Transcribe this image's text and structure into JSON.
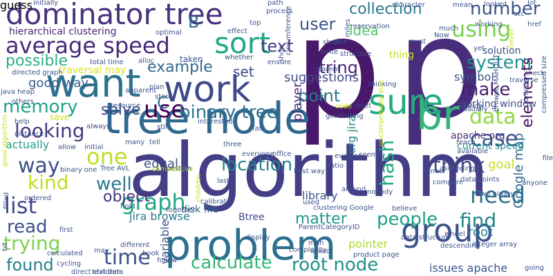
{
  "words": [
    {
      "text": "p",
      "color": "#48186a"
    },
    {
      "text": "p",
      "color": "#472d7b"
    },
    {
      "text": "algorithm",
      "color": "#433e85"
    },
    {
      "text": "tree node",
      "color": "#31688e"
    },
    {
      "text": "problem",
      "color": "#2d708e"
    },
    {
      "text": "br",
      "color": "#35b779"
    },
    {
      "text": "sure",
      "color": "#25ab82"
    },
    {
      "text": "group",
      "color": "#3b528b"
    },
    {
      "text": "want",
      "color": "#2c728e"
    },
    {
      "text": "work",
      "color": "#3e4989"
    },
    {
      "text": "dominator tree",
      "color": "#46327e"
    },
    {
      "text": "average speed",
      "color": "#482979"
    },
    {
      "text": "sort",
      "color": "#22a785"
    },
    {
      "text": "use",
      "color": "#440154"
    },
    {
      "text": "using",
      "color": "#7ad151"
    },
    {
      "text": "list",
      "color": "#3e4a89"
    },
    {
      "text": "graph",
      "color": "#22a884"
    },
    {
      "text": "time",
      "color": "#3b528b"
    },
    {
      "text": "data",
      "color": "#8fd744"
    },
    {
      "text": "one",
      "color": "#bddf26"
    },
    {
      "text": "binary tree",
      "color": "#2d708e"
    },
    {
      "text": "think",
      "color": "#414487"
    },
    {
      "text": "need",
      "color": "#2c728e"
    },
    {
      "text": "people",
      "color": "#1fa088"
    },
    {
      "text": "find",
      "color": "#24868e"
    },
    {
      "text": "kind",
      "color": "#bddf26"
    },
    {
      "text": "memory",
      "color": "#1fa188"
    },
    {
      "text": "make",
      "color": "#481d6f"
    },
    {
      "text": "location",
      "color": "#26828e"
    },
    {
      "text": "looking",
      "color": "#453781"
    },
    {
      "text": "system",
      "color": "#21918c"
    },
    {
      "text": "case",
      "color": "#3b528b"
    },
    {
      "text": "trying",
      "color": "#7ad151"
    },
    {
      "text": "calculate",
      "color": "#35b779"
    },
    {
      "text": "root node",
      "color": "#21918c"
    },
    {
      "text": "text",
      "color": "#443983"
    },
    {
      "text": "number",
      "color": "#3b528b"
    },
    {
      "text": "user",
      "color": "#3b528b"
    },
    {
      "text": "collection",
      "color": "#2a788e"
    },
    {
      "text": "point",
      "color": "#2a788e"
    },
    {
      "text": "string",
      "color": "#482475"
    },
    {
      "text": "possible",
      "color": "#2ab07f"
    },
    {
      "text": "example",
      "color": "#31688e"
    },
    {
      "text": "solve",
      "color": "#3e4a89"
    },
    {
      "text": "way",
      "color": "#3b528b"
    },
    {
      "text": "read",
      "color": "#3b528b"
    },
    {
      "text": "found",
      "color": "#277f8e"
    },
    {
      "text": "well",
      "color": "#2a788e"
    },
    {
      "text": "object",
      "color": "#46337f"
    },
    {
      "text": "matter",
      "color": "#1f968b"
    },
    {
      "text": "elements",
      "color": "#471365"
    },
    {
      "text": "Google map",
      "color": "#31688e"
    },
    {
      "text": "hash",
      "color": "#22a884"
    },
    {
      "text": "idea",
      "color": "#52c569"
    },
    {
      "text": "B",
      "color": "#31688e"
    },
    {
      "text": "C",
      "color": "#2a788e"
    },
    {
      "text": "set",
      "color": "#3e4989"
    },
    {
      "text": "suggestions",
      "color": "#3f4889"
    },
    {
      "text": "hierarchical clustering",
      "color": "#482475"
    },
    {
      "text": "actually",
      "color": "#1f9e89"
    },
    {
      "text": "symbol",
      "color": "#3b528b"
    },
    {
      "text": "player",
      "color": "#482878"
    },
    {
      "text": "pointer",
      "color": "#a8db34"
    },
    {
      "text": "root",
      "color": "#277f8e"
    },
    {
      "text": "goal",
      "color": "#c8e020"
    },
    {
      "text": "current speed",
      "color": "#21918c"
    },
    {
      "text": "jira browse",
      "color": "#2a788e"
    },
    {
      "text": "equal",
      "color": "#3b528b"
    },
    {
      "text": "good way",
      "color": "#365c8d"
    },
    {
      "text": "working window",
      "color": "#3e4989"
    },
    {
      "text": "apache org",
      "color": "#46337f"
    },
    {
      "text": "issues apache",
      "color": "#39558c"
    },
    {
      "text": "library",
      "color": "#3b528b"
    },
    {
      "text": "variable",
      "color": "#3b528b"
    },
    {
      "text": "org jira",
      "color": "#23898e"
    },
    {
      "text": "traversal may",
      "color": "#d8e219"
    },
    {
      "text": "Btree",
      "color": "#404688"
    },
    {
      "text": "disk file",
      "color": "#31688e"
    },
    {
      "text": "solution",
      "color": "#3b528b"
    },
    {
      "text": "initially",
      "color": "#3e4989"
    },
    {
      "text": "character",
      "color": "#3b528b"
    },
    {
      "text": "mean",
      "color": "#3b528b"
    },
    {
      "text": "path",
      "color": "#3b528b"
    },
    {
      "text": "looked",
      "color": "#3b528b"
    },
    {
      "text": "lot",
      "color": "#3b528b"
    },
    {
      "text": "etc",
      "color": "#3b528b"
    },
    {
      "text": "href",
      "color": "#3b528b"
    },
    {
      "text": "optimal",
      "color": "#3b528b"
    },
    {
      "text": "effect",
      "color": "#3b528b"
    },
    {
      "text": "top",
      "color": "#3b528b"
    },
    {
      "text": "reservation",
      "color": "#3b528b"
    },
    {
      "text": "must",
      "color": "#3b528b"
    },
    {
      "text": "much",
      "color": "#3b528b"
    },
    {
      "text": "never",
      "color": "#d8e219"
    },
    {
      "text": "working",
      "color": "#3b528b"
    },
    {
      "text": "give",
      "color": "#3b528b"
    },
    {
      "text": "short",
      "color": "#3b528b"
    },
    {
      "text": "write",
      "color": "#3b528b"
    },
    {
      "text": "yet",
      "color": "#3b528b"
    },
    {
      "text": "thing",
      "color": "#c8e020"
    },
    {
      "text": "structure",
      "color": "#3b528b"
    },
    {
      "text": "taken",
      "color": "#3b528b"
    },
    {
      "text": "total time",
      "color": "#3b528b"
    },
    {
      "text": "whether",
      "color": "#3b528b"
    },
    {
      "text": "ensure",
      "color": "#3b528b"
    },
    {
      "text": "directed graph",
      "color": "#3b528b"
    },
    {
      "text": "alloc",
      "color": "#3b528b"
    },
    {
      "text": "parent",
      "color": "#3b528b"
    },
    {
      "text": "thinking",
      "color": "#3b528b"
    },
    {
      "text": "reset",
      "color": "#3b528b"
    },
    {
      "text": "check",
      "color": "#3b528b"
    },
    {
      "text": "traverse",
      "color": "#3b528b"
    },
    {
      "text": "unique",
      "color": "#3b528b"
    },
    {
      "text": "divide",
      "color": "#3b528b"
    },
    {
      "text": "java heap",
      "color": "#3b528b"
    },
    {
      "text": "others",
      "color": "#3b528b"
    },
    {
      "text": "apparent",
      "color": "#3b528b"
    },
    {
      "text": "store",
      "color": "#3b528b"
    },
    {
      "text": "resource",
      "color": "#3b528b"
    },
    {
      "text": "save",
      "color": "#c8e020"
    },
    {
      "text": "help",
      "color": "#3b528b"
    },
    {
      "text": "distance",
      "color": "#3b528b"
    },
    {
      "text": "always",
      "color": "#3b528b"
    },
    {
      "text": "interested",
      "color": "#3b528b"
    },
    {
      "text": "fast",
      "color": "#3b528b"
    },
    {
      "text": "generating",
      "color": "#3b528b"
    },
    {
      "text": "code",
      "color": "#c8e020"
    },
    {
      "text": "usually",
      "color": "#3b528b"
    },
    {
      "text": "uncompressed size",
      "color": "#c8e020"
    },
    {
      "text": "compressed size",
      "color": "#3b528b"
    },
    {
      "text": "reach",
      "color": "#3b528b"
    },
    {
      "text": "available",
      "color": "#3b528b"
    },
    {
      "text": "file",
      "color": "#3b528b"
    },
    {
      "text": "allow",
      "color": "#3b528b"
    },
    {
      "text": "initial",
      "color": "#3b528b"
    },
    {
      "text": "many",
      "color": "#3b528b"
    },
    {
      "text": "tell",
      "color": "#3b528b"
    },
    {
      "text": "three",
      "color": "#3b528b"
    },
    {
      "text": "everyone",
      "color": "#3b528b"
    },
    {
      "text": "office",
      "color": "#3b528b"
    },
    {
      "text": "seems",
      "color": "#3b528b"
    },
    {
      "text": "evening",
      "color": "#3b528b"
    },
    {
      "text": "ratio",
      "color": "#3b528b"
    },
    {
      "text": "ascending",
      "color": "#3b528b"
    },
    {
      "text": "binary one",
      "color": "#3b528b"
    },
    {
      "text": "Tree AVL",
      "color": "#3b528b"
    },
    {
      "text": "competitive",
      "color": "#c8e020"
    },
    {
      "text": "question",
      "color": "#3b528b"
    },
    {
      "text": "best way",
      "color": "#3b528b"
    },
    {
      "text": "around",
      "color": "#3b528b"
    },
    {
      "text": "nobody",
      "color": "#3b528b"
    },
    {
      "text": "know",
      "color": "#3b528b"
    },
    {
      "text": "data points",
      "color": "#3b528b"
    },
    {
      "text": "anyone",
      "color": "#3b528b"
    },
    {
      "text": "two binary",
      "color": "#3b528b"
    },
    {
      "text": "ordered",
      "color": "#3b528b"
    },
    {
      "text": "hold",
      "color": "#3b528b"
    },
    {
      "text": "together",
      "color": "#3b528b"
    },
    {
      "text": "display",
      "color": "#3b528b"
    },
    {
      "text": "complexity",
      "color": "#3b528b"
    },
    {
      "text": "clustering Google",
      "color": "#3b528b"
    },
    {
      "text": "used",
      "color": "#3b528b"
    },
    {
      "text": "believe",
      "color": "#3b528b"
    },
    {
      "text": "ParentCategoryID",
      "color": "#3b528b"
    },
    {
      "text": "first",
      "color": "#3b528b"
    },
    {
      "text": "different",
      "color": "#3b528b"
    },
    {
      "text": "calculated",
      "color": "#3b528b"
    },
    {
      "text": "book",
      "color": "#3b528b"
    },
    {
      "text": "cycling",
      "color": "#3b528b"
    },
    {
      "text": "direct children",
      "color": "#3b528b"
    },
    {
      "text": "data structure",
      "color": "#3b528b"
    },
    {
      "text": "product page",
      "color": "#3b528b"
    },
    {
      "text": "integer array",
      "color": "#3b528b"
    },
    {
      "text": "going",
      "color": "#3b528b"
    },
    {
      "text": "may",
      "color": "#3b528b"
    },
    {
      "text": "follow",
      "color": "#3b528b"
    },
    {
      "text": "asked",
      "color": "#3b528b"
    },
    {
      "text": "mph",
      "color": "#3b528b"
    },
    {
      "text": "Now",
      "color": "#3b528b"
    },
    {
      "text": "miles",
      "color": "#3b528b"
    },
    {
      "text": "show",
      "color": "#3b528b"
    },
    {
      "text": "circumference",
      "color": "#3b528b"
    },
    {
      "text": "wheel",
      "color": "#3b528b"
    },
    {
      "text": "descending",
      "color": "#3b528b"
    },
    {
      "text": "children",
      "color": "#c8e020"
    },
    {
      "text": "good algorithm",
      "color": "#c8e020"
    },
    {
      "text": "browse MAHOUT",
      "color": "#3b528b"
    },
    {
      "text": "bit",
      "color": "#3b528b"
    },
    {
      "text": "filled",
      "color": "#3b528b"
    },
    {
      "text": "text data",
      "color": "#3b528b"
    },
    {
      "text": "calibrate",
      "color": "#3b528b"
    },
    {
      "text": "last",
      "color": "#3b528b"
    },
    {
      "text": "still",
      "color": "#3b528b"
    },
    {
      "text": "go",
      "color": "#3b528b"
    },
    {
      "text": "process",
      "color": "#3b528b"
    },
    {
      "text": "compare",
      "color": "#3b528b"
    },
    {
      "text": "plan",
      "color": "#3b528b"
    },
    {
      "text": "guess",
      "color": "#3b528b"
    }
  ]
}
